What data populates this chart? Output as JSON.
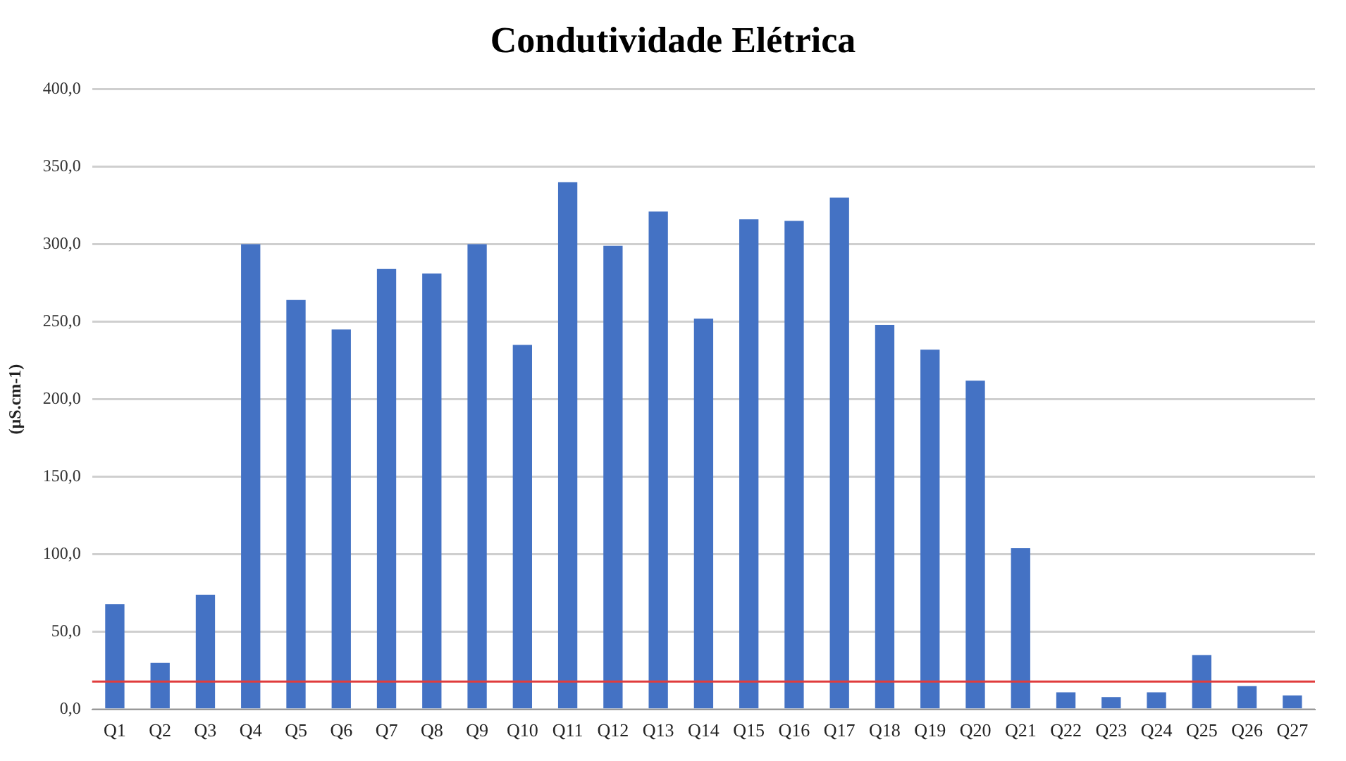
{
  "chart_data": {
    "type": "bar",
    "title": "Condutividade Elétrica",
    "ylabel": "(µS.cm-1)",
    "categories": [
      "Q1",
      "Q2",
      "Q3",
      "Q4",
      "Q5",
      "Q6",
      "Q7",
      "Q8",
      "Q9",
      "Q10",
      "Q11",
      "Q12",
      "Q13",
      "Q14",
      "Q15",
      "Q16",
      "Q17",
      "Q18",
      "Q19",
      "Q20",
      "Q21",
      "Q22",
      "Q23",
      "Q24",
      "Q25",
      "Q26",
      "Q27"
    ],
    "values": [
      68,
      30,
      74,
      300,
      264,
      245,
      284,
      281,
      300,
      235,
      340,
      299,
      321,
      252,
      316,
      315,
      330,
      248,
      232,
      212,
      104,
      11,
      8,
      11,
      35,
      15,
      9
    ],
    "color": "#4472c4",
    "ylim": [
      0,
      400
    ],
    "yticks": [
      {
        "value": 0,
        "label": "0,0"
      },
      {
        "value": 50,
        "label": "50,0"
      },
      {
        "value": 100,
        "label": "100,0"
      },
      {
        "value": 150,
        "label": "150,0"
      },
      {
        "value": 200,
        "label": "200,0"
      },
      {
        "value": 250,
        "label": "250,0"
      },
      {
        "value": 300,
        "label": "300,0"
      },
      {
        "value": 350,
        "label": "350,0"
      },
      {
        "value": 400,
        "label": "400,0"
      }
    ],
    "grid": "y",
    "ref_lines": [
      {
        "axis": "y",
        "value": 18,
        "color": "#e03c3c"
      }
    ]
  }
}
